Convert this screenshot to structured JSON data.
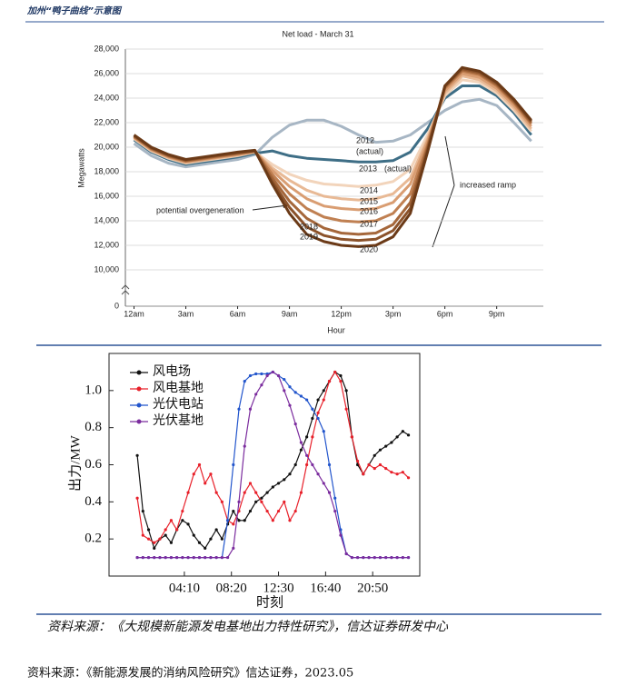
{
  "header": {
    "title": "加州“鸭子曲线”示意图"
  },
  "captions": [
    "资料来源：《大规模新能源发电基地出力特性研究》，信达证券研发中心",
    "资料来源：《新能源发展的消纳风险研究》信达证券，2023.05"
  ],
  "chart_data": [
    {
      "type": "line",
      "title": "Net load - March 31",
      "xlabel": "Hour",
      "ylabel": "Megawatts",
      "legend": "inline",
      "grid": true,
      "axis_break": true,
      "x": [
        0,
        1,
        2,
        3,
        4,
        5,
        6,
        7,
        8,
        9,
        10,
        11,
        12,
        13,
        14,
        15,
        16,
        17,
        18,
        19,
        20,
        21,
        22,
        23
      ],
      "xlim": [
        -0.5,
        23.7
      ],
      "xticks": [
        {
          "value": 0,
          "label": "12am"
        },
        {
          "value": 3,
          "label": "3am"
        },
        {
          "value": 6,
          "label": "6am"
        },
        {
          "value": 9,
          "label": "9am"
        },
        {
          "value": 12,
          "label": "12pm"
        },
        {
          "value": 15,
          "label": "3pm"
        },
        {
          "value": 18,
          "label": "6pm"
        },
        {
          "value": 21,
          "label": "9pm"
        }
      ],
      "ylim": [
        0,
        28000
      ],
      "yticks": [
        0,
        {
          "value": 10000,
          "label": "10,000"
        },
        {
          "value": 12000,
          "label": "12,000"
        },
        {
          "value": 14000,
          "label": "14,000"
        },
        {
          "value": 16000,
          "label": "16,000"
        },
        {
          "value": 18000,
          "label": "18,000"
        },
        {
          "value": 20000,
          "label": "20,000"
        },
        {
          "value": 22000,
          "label": "22,000"
        },
        {
          "value": 24000,
          "label": "24,000"
        },
        {
          "value": 26000,
          "label": "26,000"
        },
        {
          "value": 28000,
          "label": "28,000"
        }
      ],
      "annotations": [
        "(actual)",
        "(actual)",
        "increased ramp",
        "potential overgeneration"
      ],
      "series": [
        {
          "name": "2012",
          "color": "#a7b6c4",
          "values": [
            20300,
            19300,
            18700,
            18400,
            18600,
            18800,
            19000,
            19400,
            20800,
            21800,
            22200,
            22200,
            21700,
            21000,
            20400,
            20500,
            21000,
            22000,
            23000,
            23700,
            23900,
            23400,
            22000,
            20500
          ]
        },
        {
          "name": "2013",
          "color": "#3e6e86",
          "values": [
            20600,
            19600,
            19000,
            18600,
            18800,
            19000,
            19200,
            19500,
            19700,
            19300,
            19100,
            19000,
            18900,
            18800,
            18800,
            18900,
            19600,
            21500,
            24000,
            25000,
            25000,
            24200,
            22800,
            21000
          ]
        },
        {
          "name": "2014",
          "color": "#f2d4bb",
          "values": [
            20700,
            19700,
            19100,
            18700,
            18900,
            19100,
            19300,
            19600,
            18600,
            17800,
            17300,
            17000,
            16900,
            16800,
            16900,
            17200,
            18200,
            21000,
            24200,
            25500,
            25300,
            24400,
            23000,
            21300
          ]
        },
        {
          "name": "2015",
          "color": "#e8b995",
          "values": [
            20750,
            19750,
            19150,
            18750,
            18950,
            19150,
            19350,
            19600,
            18300,
            17300,
            16500,
            16000,
            15800,
            15700,
            15800,
            16200,
            17500,
            20700,
            24400,
            25800,
            25500,
            24600,
            23200,
            21500
          ]
        },
        {
          "name": "2016",
          "color": "#d99d72",
          "values": [
            20800,
            19800,
            19200,
            18800,
            19000,
            19200,
            19400,
            19650,
            18100,
            16800,
            15800,
            15200,
            15000,
            14900,
            15000,
            15500,
            17000,
            20500,
            24600,
            26000,
            25700,
            24800,
            23400,
            21700
          ]
        },
        {
          "name": "2017",
          "color": "#c08052",
          "values": [
            20850,
            19850,
            19250,
            18850,
            19050,
            19250,
            19450,
            19650,
            17800,
            16200,
            15000,
            14300,
            14000,
            13900,
            14000,
            14600,
            16200,
            20200,
            24800,
            26200,
            25900,
            25000,
            23600,
            21900
          ]
        },
        {
          "name": "2018",
          "color": "#a5673b",
          "values": [
            20900,
            19900,
            19300,
            18900,
            19100,
            19300,
            19500,
            19700,
            17500,
            15600,
            14200,
            13400,
            13000,
            12900,
            13000,
            13700,
            15500,
            20000,
            24900,
            26300,
            26000,
            25100,
            23700,
            22000
          ]
        },
        {
          "name": "2019",
          "color": "#8b522a",
          "values": [
            20950,
            19950,
            19350,
            18950,
            19150,
            19350,
            19550,
            19700,
            17200,
            15100,
            13500,
            12800,
            12500,
            12400,
            12500,
            13200,
            15000,
            19800,
            25000,
            26400,
            26100,
            25200,
            23800,
            22100
          ]
        },
        {
          "name": "2020",
          "color": "#6b3a17",
          "values": [
            21000,
            20000,
            19400,
            19000,
            19200,
            19400,
            19600,
            19750,
            17000,
            14600,
            12900,
            12300,
            12000,
            11900,
            12000,
            12700,
            14600,
            19600,
            25000,
            26500,
            26200,
            25300,
            23900,
            22200
          ]
        }
      ]
    },
    {
      "type": "line",
      "xlabel": "时刻",
      "ylabel": "出力/MW",
      "legend": "upper left",
      "grid": false,
      "markers": true,
      "x": [
        0,
        30,
        60,
        90,
        120,
        150,
        180,
        210,
        240,
        270,
        300,
        330,
        360,
        390,
        420,
        450,
        480,
        510,
        540,
        570,
        600,
        630,
        660,
        690,
        720,
        750,
        780,
        810,
        840,
        870,
        900,
        930,
        960,
        990,
        1020,
        1050,
        1080,
        1110,
        1140,
        1170,
        1200,
        1230,
        1260,
        1290,
        1320,
        1350,
        1380,
        1410,
        1440
      ],
      "xlim": [
        -150,
        1500
      ],
      "xticks": [
        {
          "value": 250,
          "label": "04:10"
        },
        {
          "value": 500,
          "label": "08:20"
        },
        {
          "value": 750,
          "label": "12:30"
        },
        {
          "value": 1000,
          "label": "16:40"
        },
        {
          "value": 1250,
          "label": "20:50"
        }
      ],
      "ylim": [
        0,
        1.2
      ],
      "yticks": [
        0.2,
        0.4,
        0.6,
        0.8,
        {
          "value": 1,
          "label": "1.0"
        }
      ],
      "series": [
        {
          "name": "风电场",
          "color": "#111111",
          "values": [
            0.65,
            0.35,
            0.25,
            0.15,
            0.2,
            0.22,
            0.18,
            0.25,
            0.3,
            0.28,
            0.22,
            0.18,
            0.15,
            0.2,
            0.25,
            0.2,
            0.28,
            0.35,
            0.3,
            0.3,
            0.35,
            0.4,
            0.42,
            0.45,
            0.48,
            0.5,
            0.52,
            0.55,
            0.6,
            0.68,
            0.75,
            0.85,
            0.95,
            1.0,
            1.05,
            1.1,
            1.08,
            1.0,
            0.75,
            0.6,
            0.55,
            0.6,
            0.65,
            0.68,
            0.7,
            0.72,
            0.75,
            0.78,
            0.76
          ]
        },
        {
          "name": "风电基地",
          "color": "#e8202a",
          "values": [
            0.42,
            0.22,
            0.2,
            0.18,
            0.2,
            0.25,
            0.3,
            0.25,
            0.35,
            0.45,
            0.55,
            0.6,
            0.5,
            0.55,
            0.45,
            0.4,
            0.3,
            0.28,
            0.35,
            0.45,
            0.5,
            0.45,
            0.4,
            0.35,
            0.3,
            0.35,
            0.4,
            0.3,
            0.35,
            0.45,
            0.6,
            0.75,
            0.88,
            0.95,
            1.05,
            1.1,
            1.05,
            0.9,
            0.75,
            0.62,
            0.55,
            0.6,
            0.58,
            0.6,
            0.58,
            0.56,
            0.55,
            0.56,
            0.53
          ]
        },
        {
          "name": "光伏电站",
          "color": "#2255cc",
          "values": [
            0.1,
            0.1,
            0.1,
            0.1,
            0.1,
            0.1,
            0.1,
            0.1,
            0.1,
            0.1,
            0.1,
            0.1,
            0.1,
            0.1,
            0.1,
            0.1,
            0.3,
            0.6,
            0.9,
            1.05,
            1.08,
            1.09,
            1.09,
            1.09,
            1.1,
            1.08,
            1.06,
            1.02,
            0.99,
            0.97,
            0.95,
            0.9,
            0.85,
            0.78,
            0.6,
            0.42,
            0.25,
            0.12,
            0.1,
            0.1,
            0.1,
            0.1,
            0.1,
            0.1,
            0.1,
            0.1,
            0.1,
            0.1,
            0.1
          ]
        },
        {
          "name": "光伏基地",
          "color": "#7b2c9e",
          "values": [
            0.1,
            0.1,
            0.1,
            0.1,
            0.1,
            0.1,
            0.1,
            0.1,
            0.1,
            0.1,
            0.1,
            0.1,
            0.1,
            0.1,
            0.1,
            0.1,
            0.1,
            0.15,
            0.4,
            0.7,
            0.9,
            0.98,
            1.03,
            1.08,
            1.1,
            1.08,
            1.0,
            0.92,
            0.82,
            0.72,
            0.65,
            0.6,
            0.55,
            0.5,
            0.45,
            0.35,
            0.22,
            0.12,
            0.1,
            0.1,
            0.1,
            0.1,
            0.1,
            0.1,
            0.1,
            0.1,
            0.1,
            0.1,
            0.1
          ]
        }
      ]
    }
  ]
}
